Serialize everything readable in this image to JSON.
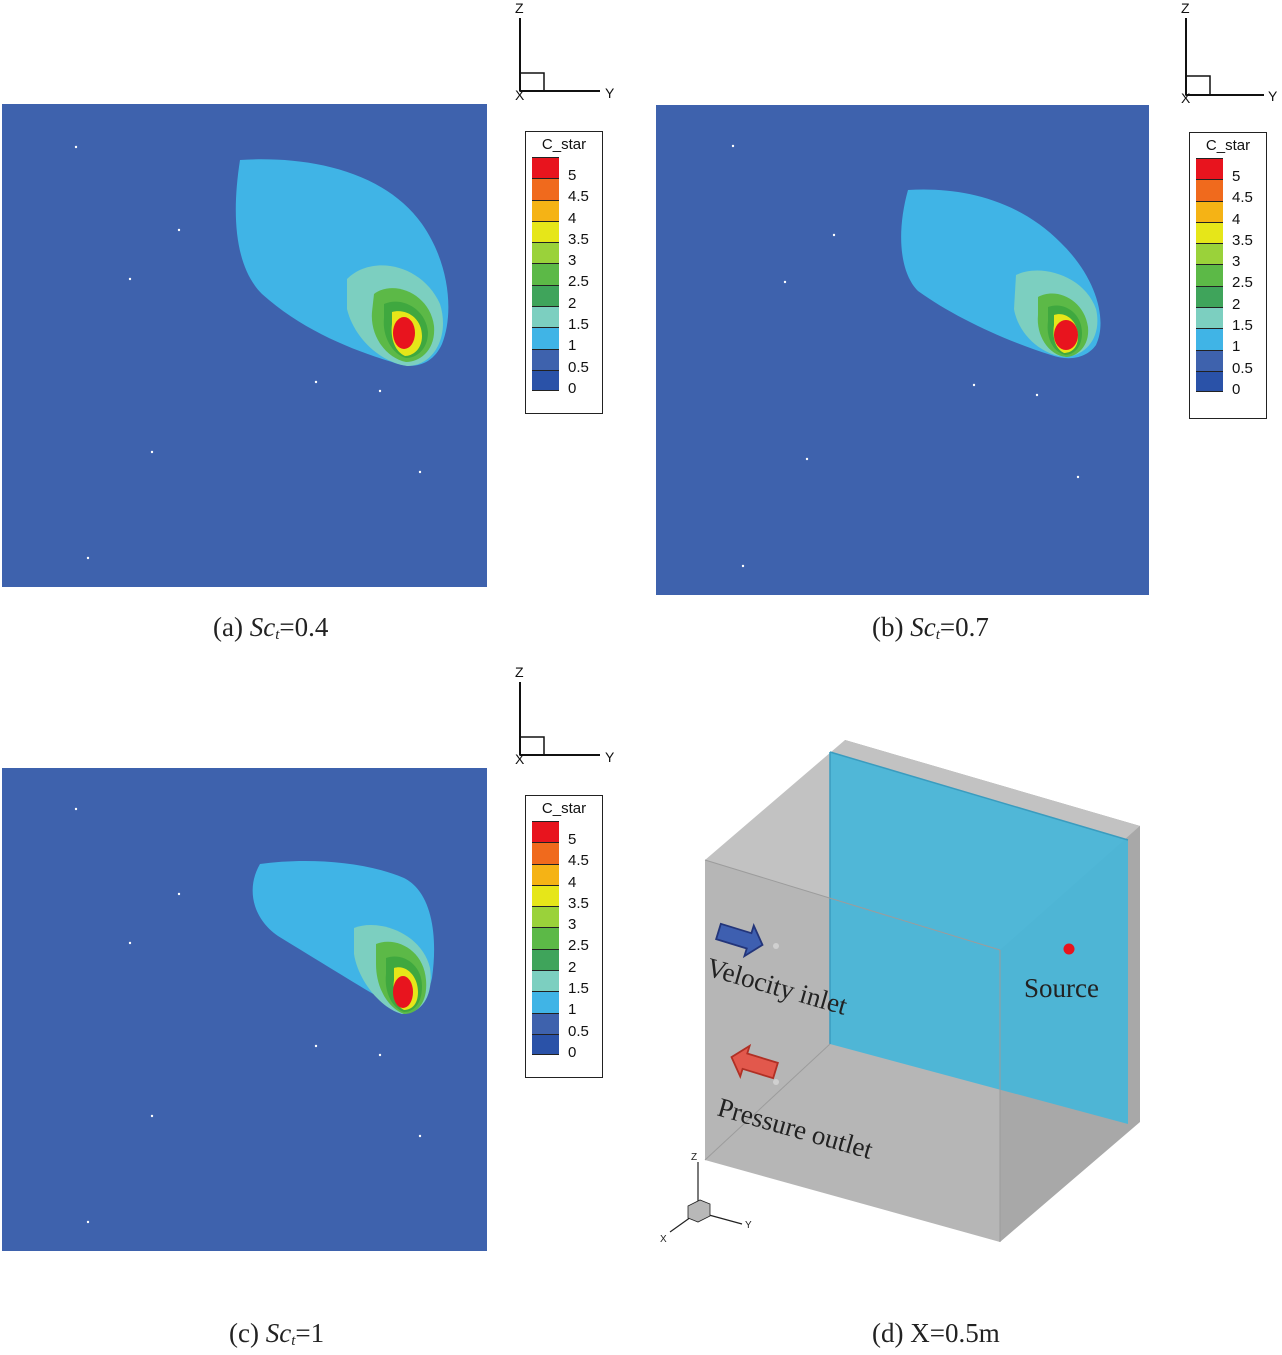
{
  "colors": {
    "background_blue": "#3e62ad",
    "plume_light": "#40b4e6",
    "plume_teal": "#6cc4c4",
    "plume_green_light": "#66bb6a",
    "plume_green": "#3fa83f",
    "plume_yellow": "#e6e619",
    "plume_red": "#e8141e"
  },
  "legend": {
    "title": "C_star",
    "entries": [
      {
        "label": "5",
        "color": "#e8141e"
      },
      {
        "label": "4.5",
        "color": "#f06a1d"
      },
      {
        "label": "4",
        "color": "#f5b315"
      },
      {
        "label": "3.5",
        "color": "#e6e619"
      },
      {
        "label": "3",
        "color": "#9ad23a"
      },
      {
        "label": "2.5",
        "color": "#5cb947"
      },
      {
        "label": "2",
        "color": "#3fa45b"
      },
      {
        "label": "1.5",
        "color": "#7ccfc0"
      },
      {
        "label": "1",
        "color": "#40b4e6"
      },
      {
        "label": "0.5",
        "color": "#3e62ad"
      },
      {
        "label": "0",
        "color": "#2a52a8"
      }
    ]
  },
  "axes": {
    "z": "Z",
    "y": "Y",
    "x": "X"
  },
  "panels": [
    {
      "id": "a",
      "caption_prefix": "(a) ",
      "caption_var": "Sc",
      "caption_sub": "t",
      "caption_value": "=0.4"
    },
    {
      "id": "b",
      "caption_prefix": "(b) ",
      "caption_var": "Sc",
      "caption_sub": "t",
      "caption_value": "=0.7"
    },
    {
      "id": "c",
      "caption_prefix": "(c) ",
      "caption_var": "Sc",
      "caption_sub": "t",
      "caption_value": "=1"
    }
  ],
  "geometry_panel": {
    "caption": "(d) X=0.5m",
    "velocity_inlet": "Velocity inlet",
    "pressure_outlet": "Pressure outlet",
    "source": "Source",
    "mini_axes": {
      "z": "Z",
      "y": "Y",
      "x": "X"
    }
  }
}
